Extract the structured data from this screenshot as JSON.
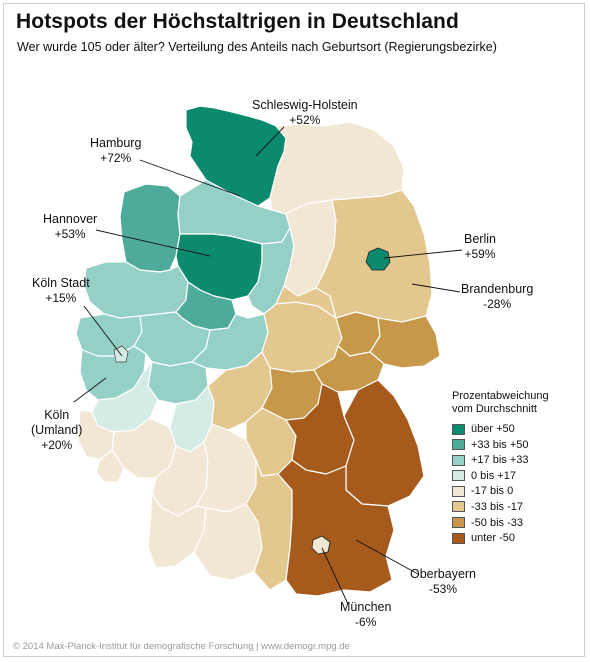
{
  "title": "Hotspots der Höchstaltrigen in Deutschland",
  "subtitle": "Wer wurde 105 oder älter? Verteilung des Anteils nach Geburtsort (Regierungsbezirke)",
  "credit": "© 2014 Max-Planck-Institut für demografische Forschung | www.demogr.mpg.de",
  "legend": {
    "title_line1": "Prozentabweichung",
    "title_line2": "vom Durchschnitt",
    "items": [
      {
        "label": "über +50",
        "color": "#0b8a6e"
      },
      {
        "label": "+33 bis +50",
        "color": "#4eab9a"
      },
      {
        "label": "+17 bis +33",
        "color": "#94d0c6"
      },
      {
        "label": "0 bis +17",
        "color": "#d4ebe6"
      },
      {
        "label": "-17 bis 0",
        "color": "#f1e7d4"
      },
      {
        "label": "-33 bis -17",
        "color": "#e2c78f"
      },
      {
        "label": "-50 bis -33",
        "color": "#c7974a"
      },
      {
        "label": "unter -50",
        "color": "#a65b1c"
      }
    ]
  },
  "labels": {
    "schleswig": {
      "name": "Schleswig-Holstein",
      "value": "+52%"
    },
    "hamburg": {
      "name": "Hamburg",
      "value": "+72%"
    },
    "hannover": {
      "name": "Hannover",
      "value": "+53%"
    },
    "berlin": {
      "name": "Berlin",
      "value": "+59%"
    },
    "brandenburg": {
      "name": "Brandenburg",
      "value": "-28%"
    },
    "koeln_stadt": {
      "name": "Köln Stadt",
      "value": "+15%"
    },
    "koeln_umland": {
      "name_line1": "Köln",
      "name_line2": "(Umland)",
      "value": "+20%"
    },
    "oberbayern": {
      "name": "Oberbayern",
      "value": "-53%"
    },
    "muenchen": {
      "name": "München",
      "value": "-6%"
    }
  }
}
